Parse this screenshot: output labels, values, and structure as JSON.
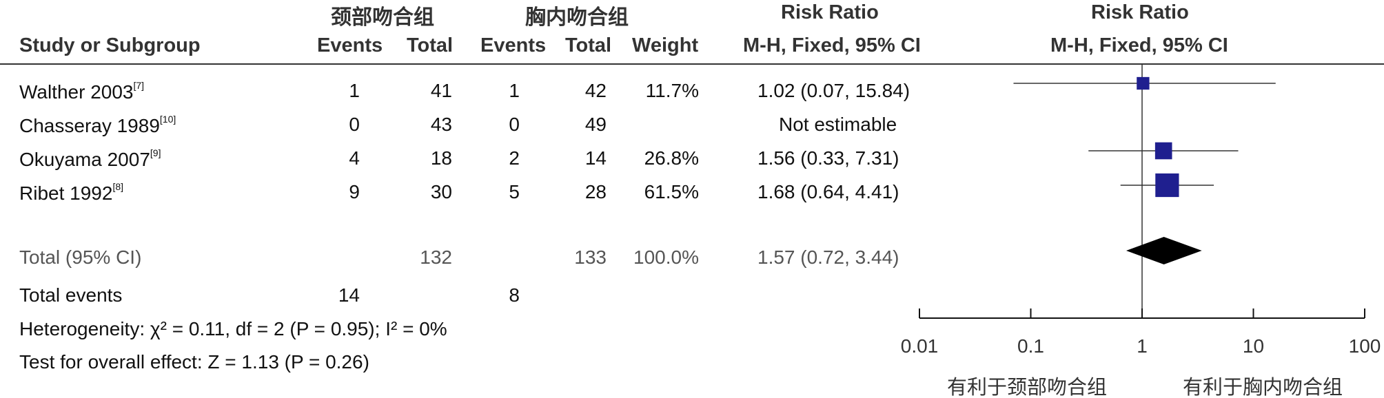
{
  "table": {
    "group_left": "颈部吻合组",
    "group_right": "胸内吻合组",
    "col_study": "Study or Subgroup",
    "col_events_left": "Events",
    "col_total_left": "Total",
    "col_events_right": "Events",
    "col_total_right": "Total",
    "col_weight": "Weight",
    "rr_title_table": "Risk Ratio",
    "rr_method_table": "M-H, Fixed, 95% CI",
    "rr_title_plot": "Risk Ratio",
    "rr_method_plot": "M-H, Fixed, 95% CI",
    "studies": [
      {
        "name": "Walther 2003",
        "ref": "[7]",
        "ev1": "1",
        "tot1": "41",
        "ev2": "1",
        "tot2": "42",
        "weight": "11.7%",
        "ci_text": "1.02 (0.07, 15.84)"
      },
      {
        "name": "Chasseray 1989",
        "ref": "[10]",
        "ev1": "0",
        "tot1": "43",
        "ev2": "0",
        "tot2": "49",
        "weight": "",
        "ci_text": "Not estimable"
      },
      {
        "name": "Okuyama 2007",
        "ref": "[9]",
        "ev1": "4",
        "tot1": "18",
        "ev2": "2",
        "tot2": "14",
        "weight": "26.8%",
        "ci_text": "1.56 (0.33, 7.31)"
      },
      {
        "name": "Ribet 1992",
        "ref": "[8]",
        "ev1": "9",
        "tot1": "30",
        "ev2": "5",
        "tot2": "28",
        "weight": "61.5%",
        "ci_text": "1.68 (0.64, 4.41)"
      }
    ],
    "total": {
      "label": "Total (95% CI)",
      "tot1": "132",
      "tot2": "133",
      "weight": "100.0%",
      "ci_text": "1.57 (0.72, 3.44)"
    },
    "total_events": {
      "label": "Total events",
      "ev1": "14",
      "ev2": "8"
    },
    "heterogeneity": "Heterogeneity: χ² = 0.11, df = 2 (P = 0.95); I² = 0%",
    "overall_effect": "Test for overall effect: Z = 1.13 (P = 0.26)"
  },
  "chart_data": {
    "type": "forest",
    "x_scale": "log",
    "xlim": [
      0.01,
      100
    ],
    "x_ticks": [
      "0.01",
      "0.1",
      "1",
      "10",
      "100"
    ],
    "x_tick_values": [
      0.01,
      0.1,
      1,
      10,
      100
    ],
    "favours_left": "有利于颈部吻合组",
    "favours_right": "有利于胸内吻合组",
    "points": [
      {
        "study": "Walther 2003",
        "rr": 1.02,
        "lo": 0.07,
        "hi": 15.84,
        "weight": 11.7
      },
      {
        "study": "Okuyama 2007",
        "rr": 1.56,
        "lo": 0.33,
        "hi": 7.31,
        "weight": 26.8
      },
      {
        "study": "Ribet 1992",
        "rr": 1.68,
        "lo": 0.64,
        "hi": 4.41,
        "weight": 61.5
      }
    ],
    "summary": {
      "rr": 1.57,
      "lo": 0.72,
      "hi": 3.44
    },
    "marker_color": "#1f1f8f",
    "diamond_color": "#000000"
  }
}
